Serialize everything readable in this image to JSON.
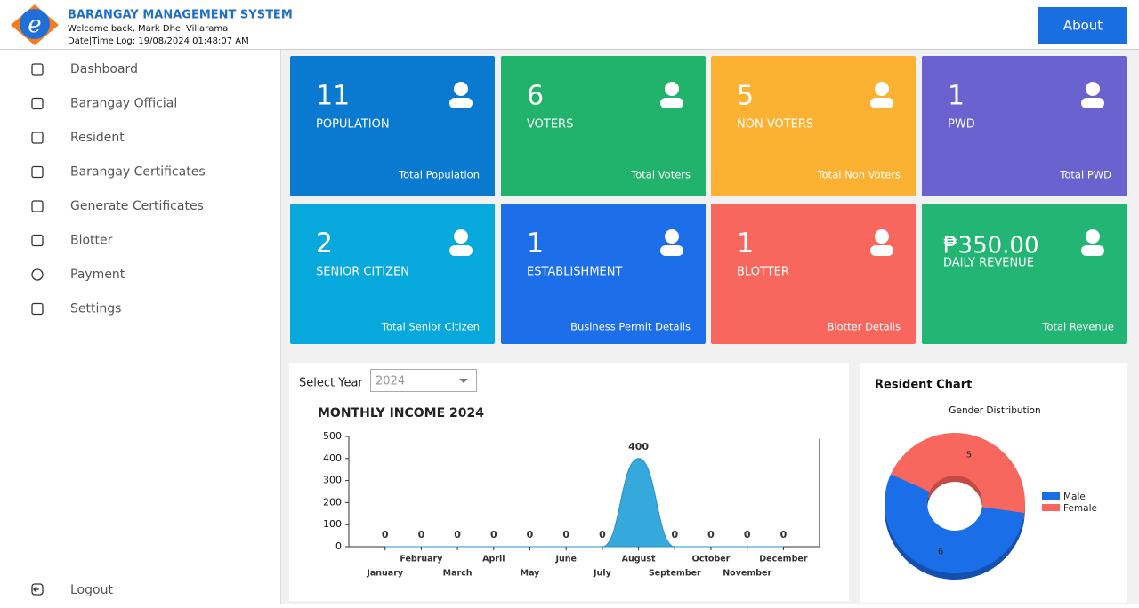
{
  "header": {
    "title": "BARANGAY MANAGEMENT SYSTEM",
    "welcome": "Welcome back, Mark Dhel Villarama",
    "log": "Date|Time Log: 19/08/2024 01:48:07 AM",
    "about": "About"
  },
  "sidebar": {
    "items": [
      "Dashboard",
      "Barangay Official",
      "Resident",
      "Barangay Certificates",
      "Generate Certificates",
      "Blotter",
      "Payment",
      "Settings"
    ],
    "logout": "Logout"
  },
  "cards": [
    {
      "value": 11,
      "label": "POPULATION",
      "footer": "Total Population",
      "color": "#0a7ad1"
    },
    {
      "value": 6,
      "label": "VOTERS",
      "footer": "Total Voters",
      "color": "#21b36b"
    },
    {
      "value": 5,
      "label": "NON VOTERS",
      "footer": "Total Non Voters",
      "color": "#fbb232"
    },
    {
      "value": 1,
      "label": "PWD",
      "footer": "Total PWD",
      "color": "#6a63cf"
    },
    {
      "value": 2,
      "label": "SENIOR CITIZEN",
      "footer": "Total Senior Citizen",
      "color": "#07a8dc"
    },
    {
      "value": 1,
      "label": "ESTABLISHMENT",
      "footer": "Business Permit Details",
      "color": "#1c6fe9"
    },
    {
      "value": 1,
      "label": "BLOTTER",
      "footer": "Blotter Details",
      "color": "#f8675e"
    },
    {
      "value": "₱350.00",
      "label": "DAILY REVENUE",
      "footer": "Total Revenue",
      "color": "#22b573"
    }
  ],
  "income_panel": {
    "select_label": "Select Year",
    "selected_year": "2024"
  },
  "resident_panel": {
    "title": "Resident Chart"
  },
  "chart_data": [
    {
      "type": "area",
      "title": "MONTHLY INCOME 2024",
      "color": "#35a9dc",
      "categories": [
        "January",
        "February",
        "March",
        "April",
        "May",
        "June",
        "July",
        "August",
        "September",
        "October",
        "November",
        "December"
      ],
      "values": [
        0,
        0,
        0,
        0,
        0,
        0,
        0,
        400,
        0,
        0,
        0,
        0
      ],
      "ylim": [
        0,
        500
      ],
      "yticks": [
        0,
        100,
        200,
        300,
        400,
        500
      ],
      "grid": false
    },
    {
      "type": "pie",
      "title": "Gender Distribution",
      "categories": [
        "Male",
        "Female"
      ],
      "values": [
        6,
        5
      ],
      "colors": [
        "#1a6fe8",
        "#f8675e"
      ],
      "donut": true,
      "legend": "right"
    }
  ]
}
